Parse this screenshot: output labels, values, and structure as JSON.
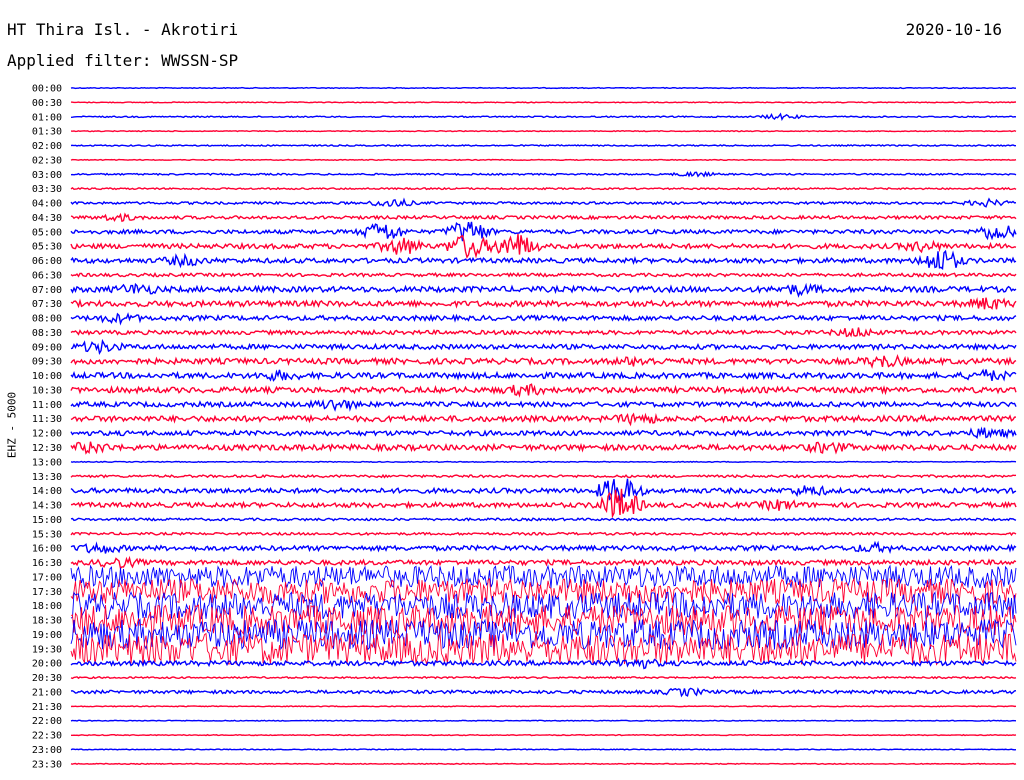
{
  "header": {
    "station": "HT Thira Isl. - Akrotiri",
    "date": "2020-10-16",
    "filter": "Applied filter: WWSSN-SP"
  },
  "chart_data": {
    "type": "line",
    "title": "HT Thira Isl. - Akrotiri",
    "subtitle": "Applied filter: WWSSN-SP",
    "date": "2020-10-16",
    "ylabel": "EHZ - 5000",
    "xlabel": "",
    "colors": {
      "blue": "#0000ff",
      "red": "#ff0033"
    },
    "grid": false,
    "row_labels": [
      "00:00",
      "00:30",
      "01:00",
      "01:30",
      "02:00",
      "02:30",
      "03:00",
      "03:30",
      "04:00",
      "04:30",
      "05:00",
      "05:30",
      "06:00",
      "06:30",
      "07:00",
      "07:30",
      "08:00",
      "08:30",
      "09:00",
      "09:30",
      "10:00",
      "10:30",
      "11:00",
      "11:30",
      "12:00",
      "12:30",
      "13:00",
      "13:30",
      "14:00",
      "14:30",
      "15:00",
      "15:30",
      "16:00",
      "16:30",
      "17:00",
      "17:30",
      "18:00",
      "18:30",
      "19:00",
      "19:30",
      "20:00",
      "20:30",
      "21:00",
      "21:30",
      "22:00",
      "22:30",
      "23:00",
      "23:30"
    ],
    "series": [
      {
        "color": "blue",
        "activity": 0.05
      },
      {
        "color": "red",
        "activity": 0.05
      },
      {
        "color": "blue",
        "activity": 0.08,
        "events": [
          {
            "at": 0.75,
            "amp": 0.3
          }
        ]
      },
      {
        "color": "red",
        "activity": 0.05
      },
      {
        "color": "blue",
        "activity": 0.08
      },
      {
        "color": "red",
        "activity": 0.05
      },
      {
        "color": "blue",
        "activity": 0.1,
        "events": [
          {
            "at": 0.66,
            "amp": 0.25
          }
        ]
      },
      {
        "color": "red",
        "activity": 0.1
      },
      {
        "color": "blue",
        "activity": 0.15,
        "events": [
          {
            "at": 0.34,
            "amp": 0.5
          },
          {
            "at": 0.97,
            "amp": 0.4
          }
        ]
      },
      {
        "color": "red",
        "activity": 0.2,
        "events": [
          {
            "at": 0.05,
            "amp": 0.35
          }
        ]
      },
      {
        "color": "blue",
        "activity": 0.25,
        "events": [
          {
            "at": 0.33,
            "amp": 1.2
          },
          {
            "at": 0.42,
            "amp": 1.5
          },
          {
            "at": 0.98,
            "amp": 1.0
          }
        ]
      },
      {
        "color": "red",
        "activity": 0.3,
        "events": [
          {
            "at": 0.35,
            "amp": 1.0
          },
          {
            "at": 0.42,
            "amp": 1.5
          },
          {
            "at": 0.47,
            "amp": 1.6
          },
          {
            "at": 0.9,
            "amp": 0.5
          }
        ]
      },
      {
        "color": "blue",
        "activity": 0.3,
        "events": [
          {
            "at": 0.12,
            "amp": 0.5
          },
          {
            "at": 0.92,
            "amp": 1.4
          }
        ]
      },
      {
        "color": "red",
        "activity": 0.2
      },
      {
        "color": "blue",
        "activity": 0.35,
        "events": [
          {
            "at": 0.07,
            "amp": 0.5
          },
          {
            "at": 0.77,
            "amp": 0.5
          }
        ]
      },
      {
        "color": "red",
        "activity": 0.35,
        "events": [
          {
            "at": 0.97,
            "amp": 0.6
          }
        ]
      },
      {
        "color": "blue",
        "activity": 0.3,
        "events": [
          {
            "at": 0.05,
            "amp": 0.4
          }
        ]
      },
      {
        "color": "red",
        "activity": 0.25,
        "events": [
          {
            "at": 0.83,
            "amp": 0.5
          }
        ]
      },
      {
        "color": "blue",
        "activity": 0.3,
        "events": [
          {
            "at": 0.03,
            "amp": 0.6
          }
        ]
      },
      {
        "color": "red",
        "activity": 0.35,
        "events": [
          {
            "at": 0.6,
            "amp": 0.4
          },
          {
            "at": 0.86,
            "amp": 0.6
          }
        ]
      },
      {
        "color": "blue",
        "activity": 0.35,
        "events": [
          {
            "at": 0.22,
            "amp": 0.4
          },
          {
            "at": 0.97,
            "amp": 0.5
          }
        ]
      },
      {
        "color": "red",
        "activity": 0.35,
        "events": [
          {
            "at": 0.48,
            "amp": 0.5
          }
        ]
      },
      {
        "color": "blue",
        "activity": 0.3,
        "events": [
          {
            "at": 0.28,
            "amp": 0.6
          }
        ]
      },
      {
        "color": "red",
        "activity": 0.35,
        "events": [
          {
            "at": 0.6,
            "amp": 0.5
          }
        ]
      },
      {
        "color": "blue",
        "activity": 0.3,
        "events": [
          {
            "at": 0.97,
            "amp": 0.5
          }
        ]
      },
      {
        "color": "red",
        "activity": 0.35,
        "events": [
          {
            "at": 0.02,
            "amp": 0.5
          },
          {
            "at": 0.8,
            "amp": 0.5
          }
        ]
      },
      {
        "color": "blue",
        "activity": 0.05
      },
      {
        "color": "red",
        "activity": 0.15
      },
      {
        "color": "blue",
        "activity": 0.3,
        "events": [
          {
            "at": 0.58,
            "amp": 1.8
          },
          {
            "at": 0.78,
            "amp": 0.5
          }
        ]
      },
      {
        "color": "red",
        "activity": 0.3,
        "events": [
          {
            "at": 0.58,
            "amp": 2.0
          },
          {
            "at": 0.75,
            "amp": 0.5
          }
        ]
      },
      {
        "color": "blue",
        "activity": 0.15
      },
      {
        "color": "red",
        "activity": 0.15
      },
      {
        "color": "blue",
        "activity": 0.3,
        "events": [
          {
            "at": 0.03,
            "amp": 0.5
          },
          {
            "at": 0.85,
            "amp": 0.4
          }
        ]
      },
      {
        "color": "red",
        "activity": 0.3,
        "events": [
          {
            "at": 0.05,
            "amp": 0.5
          }
        ]
      },
      {
        "color": "blue",
        "activity": 1.4
      },
      {
        "color": "red",
        "activity": 1.6
      },
      {
        "color": "blue",
        "activity": 1.7
      },
      {
        "color": "red",
        "activity": 1.9
      },
      {
        "color": "blue",
        "activity": 1.9
      },
      {
        "color": "red",
        "activity": 2.0
      },
      {
        "color": "blue",
        "activity": 0.3,
        "events": [
          {
            "at": 0.6,
            "amp": 0.5
          }
        ]
      },
      {
        "color": "red",
        "activity": 0.1
      },
      {
        "color": "blue",
        "activity": 0.2,
        "events": [
          {
            "at": 0.65,
            "amp": 0.4
          }
        ]
      },
      {
        "color": "red",
        "activity": 0.05
      },
      {
        "color": "blue",
        "activity": 0.05
      },
      {
        "color": "red",
        "activity": 0.05
      },
      {
        "color": "blue",
        "activity": 0.05
      },
      {
        "color": "red",
        "activity": 0.05
      }
    ]
  }
}
